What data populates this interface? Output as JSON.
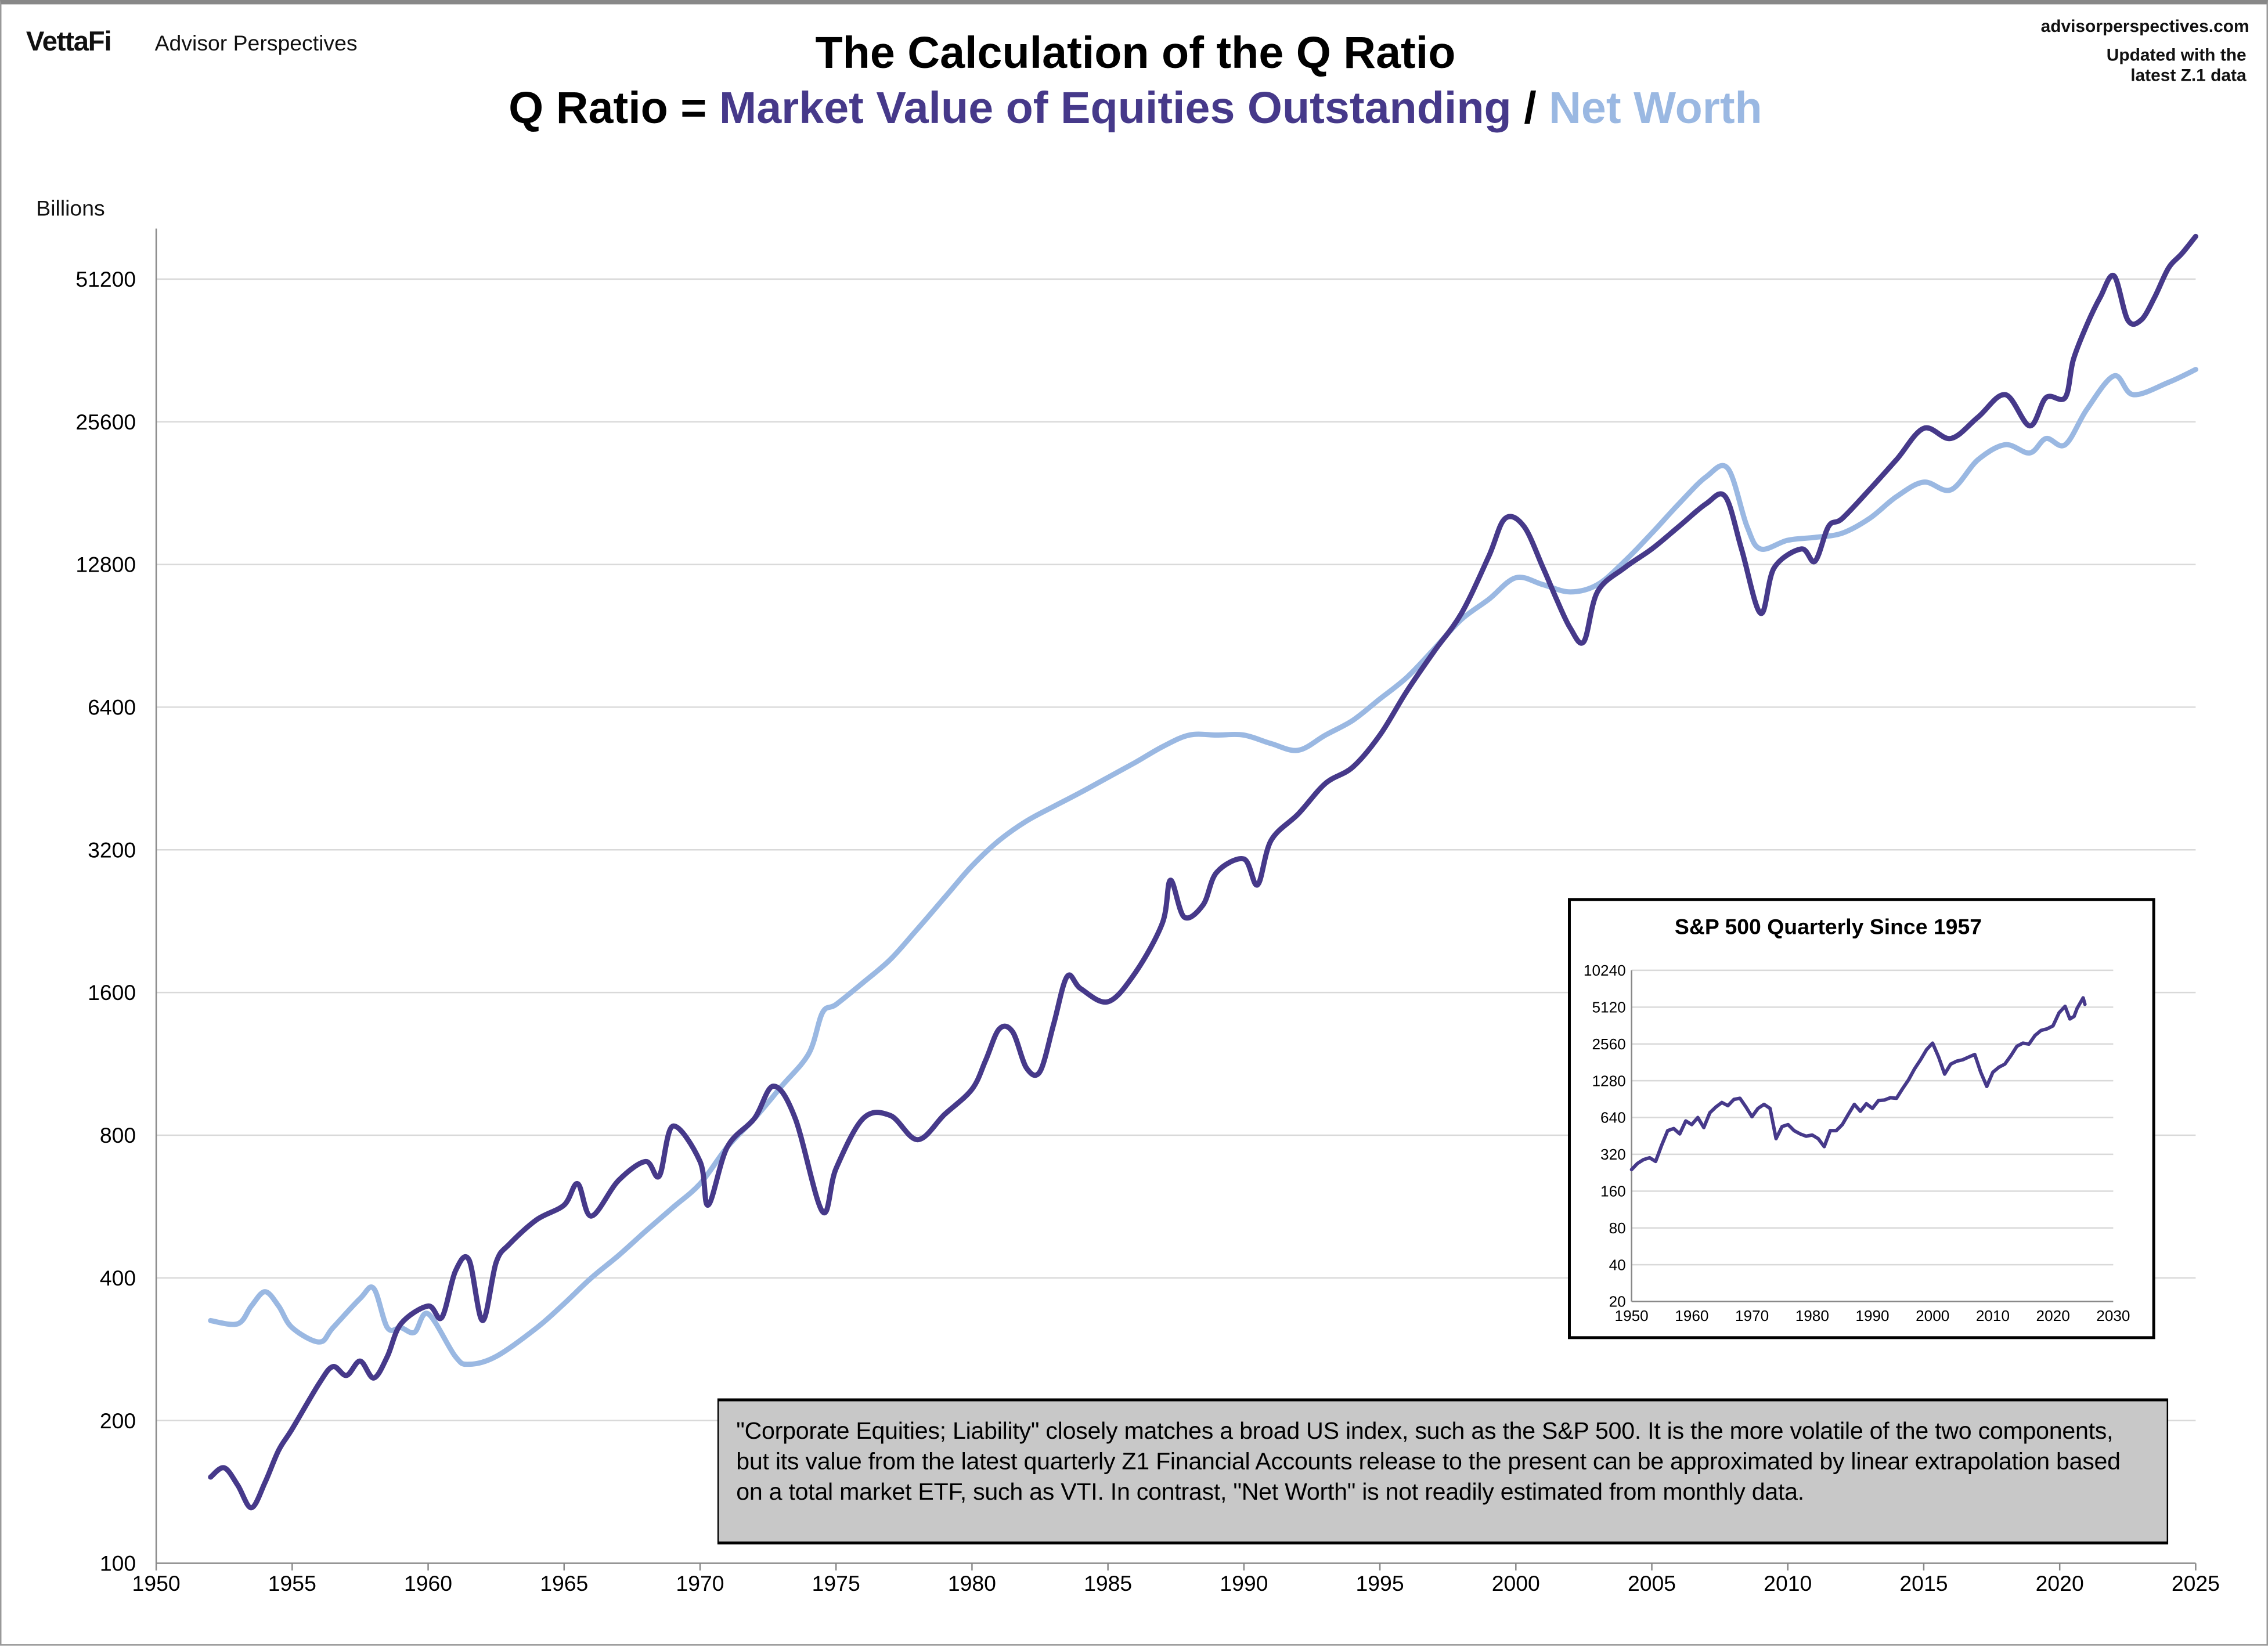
{
  "header": {
    "logo": "VettaFi",
    "logo_sub": "Advisor Perspectives",
    "site": "advisorperspectives.com",
    "updated_line1": "Updated with the",
    "updated_line2": "latest Z.1 data"
  },
  "colors": {
    "market_value": "#46398a",
    "net_worth": "#9ab8e2",
    "grid": "#d9d9d9",
    "note_bg": "#c8c8c8"
  },
  "note": "\"Corporate Equities; Liability\" closely matches a broad US index, such as the S&P 500. It is the more volatile of the two components, but its value from the latest quarterly Z1 Financial Accounts release to the present can be approximated by linear extrapolation based on a total market ETF, such as VTI.  In contrast, \"Net Worth\" is not readily estimated from monthly data.",
  "chart_data": [
    {
      "type": "line",
      "title": "The Calculation of the Q Ratio",
      "subtitle_prefix": "Q Ratio = ",
      "subtitle_series1": "Market Value of Equities Outstanding",
      "subtitle_sep": " / ",
      "subtitle_series2": "Net Worth",
      "ylabel": "Billions",
      "yscale": "log2",
      "ylim": [
        100,
        65000
      ],
      "xlim": [
        1950,
        2025
      ],
      "xticks": [
        1950,
        1955,
        1960,
        1965,
        1970,
        1975,
        1980,
        1985,
        1990,
        1995,
        2000,
        2005,
        2010,
        2015,
        2020,
        2025
      ],
      "yticks": [
        100,
        200,
        400,
        800,
        1600,
        3200,
        6400,
        12800,
        25600,
        51200
      ],
      "grid": "horizontal",
      "series": [
        {
          "key": "market_value",
          "x": [
            1952,
            1952.5,
            1953,
            1953.5,
            1954,
            1954.5,
            1955,
            1956,
            1956.5,
            1957,
            1957.5,
            1958,
            1958.5,
            1959,
            1960,
            1960.5,
            1961,
            1961.5,
            1962,
            1962.5,
            1963,
            1964,
            1965,
            1965.5,
            1966,
            1967,
            1968,
            1968.5,
            1969,
            1970,
            1970.3,
            1971,
            1972,
            1972.7,
            1973.5,
            1974.5,
            1975,
            1976,
            1977,
            1978,
            1979,
            1980,
            1980.5,
            1981,
            1981.5,
            1982,
            1982.5,
            1983,
            1983.5,
            1984,
            1985,
            1986,
            1987,
            1987.3,
            1987.8,
            1988.5,
            1989,
            1990,
            1990.5,
            1991,
            1992,
            1993,
            1994,
            1995,
            1996,
            1997,
            1998,
            1999,
            1999.6,
            2000.3,
            2001,
            2001.5,
            2002,
            2002.5,
            2003,
            2004,
            2005,
            2006,
            2007,
            2007.7,
            2008.3,
            2009,
            2009.5,
            2010.5,
            2011,
            2011.5,
            2012,
            2013,
            2014,
            2015,
            2016,
            2017,
            2018,
            2018.9,
            2019.5,
            2020.2,
            2020.5,
            2021,
            2021.5,
            2022,
            2022.5,
            2023,
            2023.5,
            2024,
            2024.5,
            2025
          ],
          "y": [
            152,
            159,
            146,
            131,
            148,
            173,
            192,
            240,
            260,
            249,
            267,
            246,
            273,
            320,
            349,
            330,
            413,
            437,
            325,
            431,
            472,
            531,
            570,
            632,
            540,
            642,
            704,
            656,
            836,
            704,
            570,
            755,
            868,
            1015,
            868,
            552,
            680,
            868,
            880,
            783,
            886,
            1000,
            1150,
            1340,
            1320,
            1110,
            1090,
            1370,
            1730,
            1630,
            1530,
            1760,
            2240,
            2760,
            2310,
            2450,
            2870,
            3060,
            2700,
            3350,
            3810,
            4420,
            4780,
            5590,
            6930,
            8400,
            10100,
            13300,
            16000,
            15400,
            12600,
            10800,
            9400,
            8800,
            11200,
            12600,
            13800,
            15400,
            17200,
            17800,
            13800,
            10100,
            12600,
            13800,
            13000,
            15400,
            16000,
            18400,
            21300,
            24800,
            23600,
            26200,
            29200,
            25100,
            28800,
            28800,
            34600,
            41000,
            47000,
            52000,
            42000,
            42000,
            47000,
            54000,
            58000,
            63000
          ]
        },
        {
          "key": "net_worth",
          "x": [
            1952,
            1953,
            1953.5,
            1954,
            1954.5,
            1955,
            1956,
            1956.5,
            1957.5,
            1958,
            1958.5,
            1959,
            1959.5,
            1960,
            1961,
            1961.5,
            1962.5,
            1964,
            1965,
            1966,
            1967,
            1968,
            1969,
            1970,
            1971,
            1972,
            1973,
            1974,
            1974.5,
            1975,
            1976,
            1977,
            1978,
            1979,
            1980,
            1981,
            1982,
            1983,
            1984,
            1985,
            1986,
            1987,
            1988,
            1989,
            1990,
            1991,
            1992,
            1993,
            1994,
            1995,
            1996,
            1997,
            1998,
            1999,
            2000,
            2001,
            2002,
            2003,
            2004,
            2005,
            2006,
            2007,
            2007.8,
            2008.5,
            2009,
            2010,
            2011,
            2012,
            2013,
            2014,
            2015,
            2016,
            2017,
            2018,
            2018.9,
            2019.5,
            2020.2,
            2021,
            2022,
            2022.7,
            2024,
            2025
          ],
          "y": [
            325,
            320,
            349,
            374,
            349,
            314,
            293,
            314,
            362,
            380,
            314,
            314,
            307,
            336,
            273,
            263,
            273,
            314,
            353,
            400,
            446,
            502,
            563,
            632,
            755,
            868,
            1015,
            1190,
            1450,
            1510,
            1680,
            1880,
            2180,
            2540,
            2960,
            3350,
            3680,
            3950,
            4230,
            4550,
            4890,
            5280,
            5590,
            5590,
            5590,
            5360,
            5190,
            5590,
            6000,
            6660,
            7400,
            8500,
            9800,
            10800,
            12000,
            11600,
            11200,
            11600,
            13000,
            14900,
            17200,
            19600,
            20400,
            15400,
            13800,
            14400,
            14600,
            14900,
            16000,
            17800,
            19100,
            18400,
            21300,
            22900,
            22000,
            23600,
            22900,
            27200,
            32000,
            29200,
            31000,
            33000
          ]
        }
      ]
    },
    {
      "type": "line",
      "title": "S&P 500 Quarterly Since 1957",
      "yscale": "log2",
      "ylim": [
        20,
        10240
      ],
      "xlim": [
        1950,
        2030
      ],
      "xticks": [
        1950,
        1960,
        1970,
        1980,
        1990,
        2000,
        2010,
        2020,
        2030
      ],
      "yticks": [
        20,
        40,
        80,
        160,
        320,
        640,
        1280,
        2560,
        5120,
        10240
      ],
      "grid": "horizontal",
      "series": [
        {
          "key": "sp500",
          "x": [
            1950,
            1951,
            1952,
            1953,
            1954,
            1955,
            1956,
            1957,
            1958,
            1959,
            1960,
            1961,
            1962,
            1963,
            1964,
            1965,
            1966,
            1967,
            1968,
            1969,
            1970,
            1971,
            1972,
            1973,
            1974,
            1975,
            1976,
            1977,
            1978,
            1979,
            1980,
            1981,
            1982,
            1983,
            1984,
            1985,
            1986,
            1987,
            1988,
            1989,
            1990,
            1991,
            1992,
            1993,
            1994,
            1995,
            1996,
            1997,
            1998,
            1999,
            2000,
            2001,
            2002,
            2003,
            2004,
            2005,
            2006,
            2007,
            2008,
            2009,
            2010,
            2011,
            2012,
            2013,
            2014,
            2015,
            2016,
            2017,
            2018,
            2019,
            2020,
            2021,
            2022,
            2022.8,
            2023.5,
            2024,
            2025,
            2025.3
          ],
          "y": [
            240,
            270,
            290,
            300,
            280,
            380,
            500,
            520,
            470,
            600,
            560,
            640,
            530,
            700,
            780,
            850,
            800,
            900,
            920,
            780,
            650,
            760,
            820,
            760,
            430,
            540,
            560,
            500,
            470,
            450,
            460,
            430,
            370,
            500,
            500,
            560,
            680,
            820,
            720,
            830,
            760,
            880,
            890,
            930,
            920,
            1100,
            1300,
            1600,
            1900,
            2300,
            2600,
            2000,
            1450,
            1750,
            1850,
            1900,
            2000,
            2100,
            1500,
            1150,
            1500,
            1650,
            1750,
            2050,
            2450,
            2600,
            2550,
            3000,
            3300,
            3400,
            3600,
            4600,
            5200,
            4100,
            4300,
            5000,
            6100,
            5400
          ]
        }
      ]
    }
  ]
}
